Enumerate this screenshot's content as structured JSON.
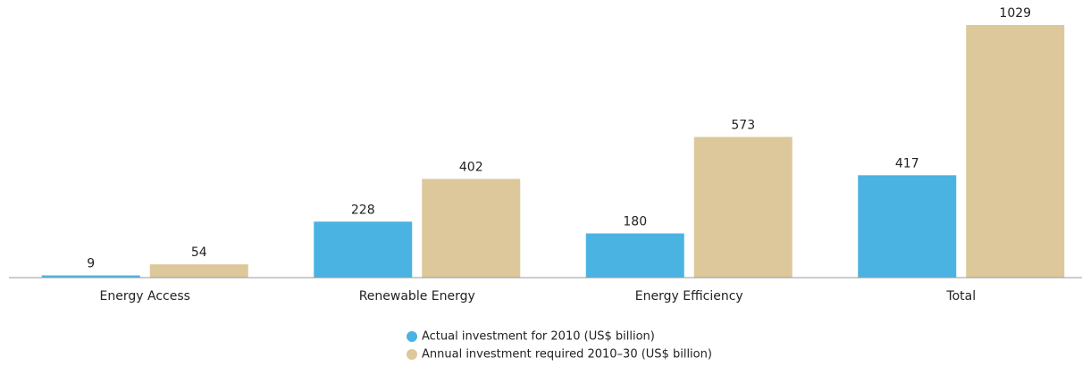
{
  "chart_data": {
    "type": "bar",
    "categories": [
      "Energy Access",
      "Renewable Energy",
      "Energy Efficiency",
      "Total"
    ],
    "series": [
      {
        "name": "Actual investment for 2010 (US$ billion)",
        "color": "#4ab3e2",
        "values": [
          9,
          228,
          180,
          417
        ]
      },
      {
        "name": "Annual investment required 2010–30 (US$ billion)",
        "color": "#dcc89a",
        "values": [
          54,
          402,
          573,
          1029
        ]
      }
    ]
  }
}
